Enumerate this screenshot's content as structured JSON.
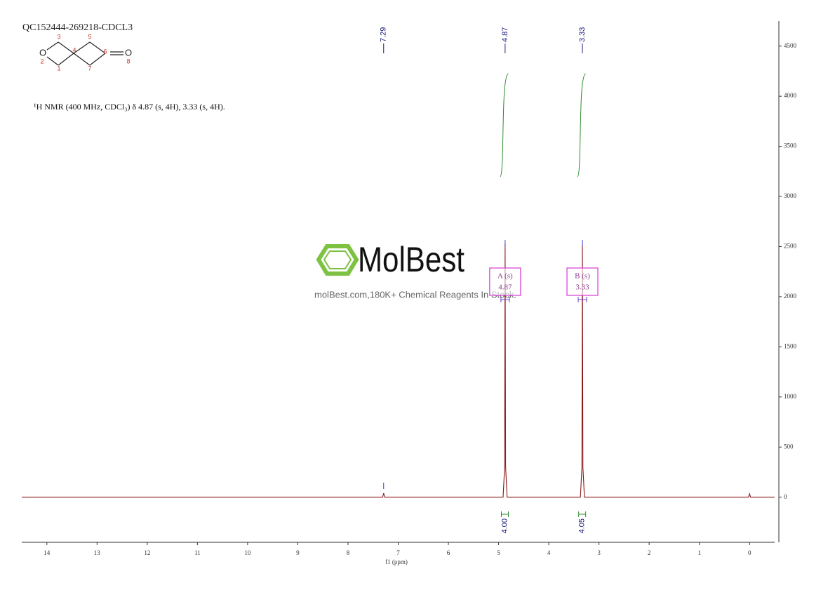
{
  "chart_data": {
    "type": "nmr",
    "title": "QC152444-269218-CDCL3",
    "description": "¹H NMR (400 MHz, CDCl₃) δ 4.87 (s, 4H), 3.33 (s, 4H).",
    "x_label": "f1 (ppm)",
    "xlim": [
      14.5,
      -0.5
    ],
    "xticks": [
      14,
      13,
      12,
      11,
      10,
      9,
      8,
      7,
      6,
      5,
      4,
      3,
      2,
      1,
      0
    ],
    "ylim": [
      -450,
      4750
    ],
    "yticks": [
      0,
      500,
      1000,
      1500,
      2000,
      2500,
      3000,
      3500,
      4000,
      4500
    ],
    "series": [
      {
        "color": "#8b1a1a",
        "x": [
          14.5,
          7.31,
          7.29,
          7.27,
          4.91,
          4.88,
          4.87,
          4.86,
          4.83,
          3.37,
          3.34,
          3.33,
          3.32,
          3.29,
          0.02,
          0,
          -0.02,
          -0.5
        ],
        "values": [
          0,
          0,
          40,
          0,
          0,
          300,
          2530,
          300,
          0,
          0,
          300,
          2520,
          300,
          0,
          0,
          35,
          0,
          0
        ]
      }
    ],
    "peak_labels": [
      7.29,
      4.87,
      3.33
    ],
    "multiplets": [
      {
        "label": "A (s)",
        "shift": 4.87
      },
      {
        "label": "B (s)",
        "shift": 3.33
      }
    ],
    "integrals": [
      {
        "from": 4.97,
        "to": 4.78,
        "value": 4.0,
        "value_label": "4.00"
      },
      {
        "from": 3.43,
        "to": 3.24,
        "value": 4.05,
        "value_label": "4.05"
      }
    ],
    "watermark": {
      "brand": "MolBest",
      "tagline": "molBest.com,180K+ Chemical Reagents In Stock."
    },
    "structure": {
      "atoms": [
        "O",
        "O"
      ],
      "numbers": [
        "1",
        "2",
        "3",
        "4",
        "5",
        "6",
        "7",
        "8"
      ]
    }
  }
}
